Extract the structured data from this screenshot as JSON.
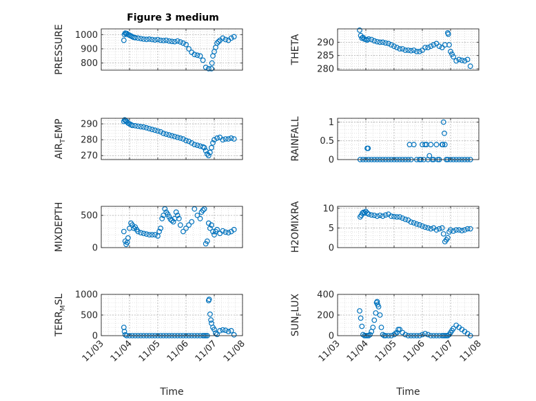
{
  "figure": {
    "title": "Figure 3 medium"
  },
  "colors": {
    "marker": "#0072BD",
    "axis": "#262626",
    "grid": "#c8c8c8"
  },
  "chart_data": [
    {
      "id": "pressure",
      "type": "scatter",
      "ylabel": "PRESSURE",
      "xlim": [
        0,
        5
      ],
      "ylim": [
        750,
        1040
      ],
      "yticks": [
        800,
        900,
        1000
      ],
      "ytick_labels": [
        "800",
        "900",
        "1000"
      ],
      "xticks": [
        0,
        1,
        2,
        3,
        4,
        5
      ],
      "xtick_labels": [],
      "grid": true,
      "minor_grid": true,
      "x": [
        0.8,
        0.82,
        0.85,
        0.88,
        0.9,
        0.95,
        1.0,
        1.05,
        1.1,
        1.15,
        1.2,
        1.3,
        1.4,
        1.5,
        1.6,
        1.7,
        1.8,
        1.9,
        2.0,
        2.1,
        2.2,
        2.3,
        2.4,
        2.5,
        2.6,
        2.7,
        2.8,
        2.9,
        3.0,
        3.1,
        3.2,
        3.3,
        3.4,
        3.5,
        3.6,
        3.7,
        3.8,
        3.9,
        3.92,
        3.95,
        4.0,
        4.05,
        4.1,
        4.15,
        4.2,
        4.3,
        4.4,
        4.5,
        4.6,
        4.7
      ],
      "y": [
        960,
        1000,
        1010,
        1005,
        1008,
        1000,
        995,
        990,
        985,
        980,
        978,
        975,
        972,
        968,
        966,
        968,
        965,
        962,
        965,
        960,
        958,
        960,
        955,
        952,
        950,
        955,
        948,
        940,
        930,
        900,
        875,
        860,
        855,
        850,
        820,
        770,
        760,
        760,
        800,
        850,
        880,
        910,
        940,
        950,
        960,
        975,
        965,
        960,
        975,
        985
      ]
    },
    {
      "id": "theta",
      "type": "scatter",
      "ylabel": "THETA",
      "xlim": [
        0,
        5
      ],
      "ylim": [
        279.5,
        295
      ],
      "yticks": [
        280,
        285,
        290
      ],
      "ytick_labels": [
        "280",
        "285",
        "290"
      ],
      "xticks": [
        0,
        1,
        2,
        3,
        4,
        5
      ],
      "xtick_labels": [],
      "grid": true,
      "minor_grid": true,
      "x": [
        0.78,
        0.82,
        0.86,
        0.9,
        0.95,
        1.0,
        1.05,
        1.1,
        1.2,
        1.3,
        1.4,
        1.5,
        1.6,
        1.7,
        1.8,
        1.9,
        2.0,
        2.1,
        2.2,
        2.3,
        2.4,
        2.5,
        2.6,
        2.7,
        2.8,
        2.9,
        3.0,
        3.1,
        3.2,
        3.3,
        3.4,
        3.5,
        3.6,
        3.7,
        3.8,
        3.9,
        3.92,
        3.95,
        4.0,
        4.05,
        4.1,
        4.2,
        4.3,
        4.4,
        4.5,
        4.6,
        4.7
      ],
      "y": [
        294.5,
        292.5,
        291.5,
        291.8,
        291.2,
        291.0,
        290.8,
        291.2,
        291.0,
        290.5,
        290.2,
        290.0,
        290.0,
        289.7,
        289.5,
        289.0,
        288.5,
        288.0,
        287.5,
        287.5,
        287.0,
        287.0,
        286.8,
        287.0,
        286.5,
        286.5,
        287.0,
        288.0,
        288.0,
        288.5,
        289.0,
        289.5,
        288.5,
        288.0,
        289.0,
        293.5,
        293.0,
        289.0,
        286.5,
        285.5,
        284.5,
        283.0,
        283.5,
        283.2,
        283.0,
        283.5,
        281.0
      ]
    },
    {
      "id": "air_temp",
      "type": "scatter",
      "ylabel": "AIR_TEMP",
      "xlim": [
        0,
        5
      ],
      "ylim": [
        267.5,
        293.5
      ],
      "yticks": [
        270,
        280,
        290
      ],
      "ytick_labels": [
        "270",
        "280",
        "290"
      ],
      "xticks": [
        0,
        1,
        2,
        3,
        4,
        5
      ],
      "xtick_labels": [],
      "grid": true,
      "minor_grid": true,
      "x": [
        0.8,
        0.83,
        0.86,
        0.9,
        0.95,
        1.0,
        1.05,
        1.1,
        1.2,
        1.3,
        1.4,
        1.5,
        1.6,
        1.7,
        1.8,
        1.9,
        2.0,
        2.1,
        2.2,
        2.3,
        2.4,
        2.5,
        2.6,
        2.7,
        2.8,
        2.9,
        3.0,
        3.1,
        3.2,
        3.3,
        3.4,
        3.5,
        3.6,
        3.65,
        3.7,
        3.75,
        3.8,
        3.85,
        3.9,
        3.95,
        4.0,
        4.1,
        4.2,
        4.3,
        4.4,
        4.5,
        4.6,
        4.7
      ],
      "y": [
        291.5,
        292.5,
        292.0,
        291.5,
        290.5,
        290.0,
        289.5,
        289.0,
        288.8,
        288.5,
        288.2,
        288.0,
        287.5,
        287.0,
        286.5,
        286.0,
        285.5,
        285.0,
        284.0,
        283.5,
        283.0,
        282.5,
        282.0,
        281.5,
        281.0,
        280.5,
        279.5,
        279.0,
        278.0,
        277.0,
        276.5,
        276.0,
        275.5,
        275.0,
        273.0,
        271.0,
        270.0,
        272.0,
        275.0,
        278.0,
        280.0,
        281.0,
        281.5,
        280.0,
        280.5,
        280.5,
        281.0,
        280.5
      ]
    },
    {
      "id": "rainfall",
      "type": "scatter",
      "ylabel": "RAINFALL",
      "xlim": [
        0,
        5
      ],
      "ylim": [
        0,
        1.1
      ],
      "yticks": [
        0,
        0.5,
        1
      ],
      "ytick_labels": [
        "0",
        "0.5",
        "1"
      ],
      "xticks": [
        0,
        1,
        2,
        3,
        4,
        5
      ],
      "xtick_labels": [],
      "grid": true,
      "minor_grid": true,
      "x": [
        0.8,
        0.9,
        1.0,
        1.05,
        1.08,
        1.1,
        1.2,
        1.3,
        1.4,
        1.5,
        1.6,
        1.7,
        1.8,
        1.9,
        2.0,
        2.1,
        2.2,
        2.3,
        2.4,
        2.5,
        2.55,
        2.6,
        2.7,
        2.8,
        2.9,
        2.95,
        3.0,
        3.05,
        3.1,
        3.15,
        3.2,
        3.25,
        3.3,
        3.35,
        3.4,
        3.5,
        3.55,
        3.6,
        3.7,
        3.72,
        3.75,
        3.78,
        3.8,
        3.85,
        3.9,
        4.0,
        4.1,
        4.2,
        4.3,
        4.4,
        4.5,
        4.6,
        4.7
      ],
      "y": [
        0,
        0,
        0,
        0.3,
        0.3,
        0,
        0,
        0,
        0,
        0,
        0,
        0,
        0,
        0,
        0,
        0,
        0,
        0,
        0,
        0,
        0.4,
        0,
        0.4,
        0,
        0,
        0,
        0.4,
        0,
        0.4,
        0.4,
        0,
        0.1,
        0.4,
        0,
        0,
        0.4,
        0,
        0,
        0.4,
        0.4,
        1.0,
        0.7,
        0.4,
        0,
        0,
        0,
        0,
        0,
        0,
        0,
        0,
        0,
        0
      ]
    },
    {
      "id": "mixdepth",
      "type": "scatter",
      "ylabel": "MIXDEPTH",
      "xlim": [
        0,
        5
      ],
      "ylim": [
        0,
        640
      ],
      "yticks": [
        0,
        500
      ],
      "ytick_labels": [
        "0",
        "500"
      ],
      "xticks": [
        0,
        1,
        2,
        3,
        4,
        5
      ],
      "xtick_labels": [],
      "grid": true,
      "minor_grid": true,
      "x": [
        0.8,
        0.85,
        0.88,
        0.92,
        0.95,
        1.0,
        1.05,
        1.1,
        1.15,
        1.2,
        1.25,
        1.3,
        1.4,
        1.5,
        1.6,
        1.7,
        1.8,
        1.9,
        2.0,
        2.05,
        2.1,
        2.15,
        2.2,
        2.25,
        2.3,
        2.35,
        2.4,
        2.45,
        2.5,
        2.55,
        2.6,
        2.65,
        2.7,
        2.75,
        2.8,
        2.9,
        3.0,
        3.1,
        3.2,
        3.3,
        3.4,
        3.5,
        3.55,
        3.6,
        3.65,
        3.7,
        3.75,
        3.8,
        3.85,
        3.9,
        3.95,
        4.0,
        4.05,
        4.1,
        4.2,
        4.3,
        4.4,
        4.5,
        4.6,
        4.7
      ],
      "y": [
        250,
        100,
        50,
        80,
        150,
        300,
        380,
        350,
        300,
        320,
        280,
        250,
        230,
        220,
        210,
        200,
        200,
        200,
        180,
        250,
        300,
        450,
        500,
        600,
        550,
        520,
        480,
        440,
        420,
        400,
        450,
        550,
        500,
        450,
        350,
        250,
        300,
        350,
        400,
        600,
        500,
        450,
        550,
        580,
        600,
        60,
        100,
        380,
        300,
        350,
        250,
        200,
        250,
        280,
        220,
        260,
        240,
        230,
        250,
        280
      ]
    },
    {
      "id": "h2omixra",
      "type": "scatter",
      "ylabel": "H2OMIXRA",
      "xlim": [
        0,
        5
      ],
      "ylim": [
        0,
        10.5
      ],
      "yticks": [
        0,
        5,
        10
      ],
      "ytick_labels": [
        "0",
        "5",
        "10"
      ],
      "xticks": [
        0,
        1,
        2,
        3,
        4,
        5
      ],
      "xtick_labels": [],
      "grid": true,
      "minor_grid": true,
      "x": [
        0.8,
        0.84,
        0.88,
        0.92,
        0.96,
        1.0,
        1.05,
        1.1,
        1.2,
        1.3,
        1.4,
        1.5,
        1.6,
        1.7,
        1.8,
        1.9,
        2.0,
        2.1,
        2.2,
        2.3,
        2.4,
        2.5,
        2.6,
        2.7,
        2.8,
        2.9,
        3.0,
        3.1,
        3.2,
        3.3,
        3.4,
        3.5,
        3.6,
        3.7,
        3.75,
        3.8,
        3.85,
        3.9,
        3.95,
        4.0,
        4.1,
        4.2,
        4.3,
        4.4,
        4.5,
        4.6,
        4.7
      ],
      "y": [
        7.8,
        8.2,
        8.8,
        9.0,
        8.8,
        9.2,
        8.8,
        8.5,
        8.3,
        8.2,
        8.0,
        8.2,
        8.0,
        8.3,
        8.5,
        8.0,
        7.9,
        7.8,
        7.8,
        7.5,
        7.2,
        7.0,
        6.5,
        6.3,
        6.0,
        5.8,
        5.5,
        5.2,
        5.0,
        4.8,
        5.0,
        4.5,
        4.8,
        5.0,
        3.5,
        1.5,
        2.0,
        2.5,
        4.0,
        4.5,
        4.2,
        4.5,
        4.5,
        4.3,
        4.5,
        4.8,
        4.8
      ]
    },
    {
      "id": "terr_msl",
      "type": "scatter",
      "ylabel": "TERR_MSL",
      "xlim": [
        0,
        5
      ],
      "ylim": [
        0,
        1000
      ],
      "yticks": [
        0,
        500,
        1000
      ],
      "ytick_labels": [
        "0",
        "500",
        "1000"
      ],
      "xticks": [
        0,
        1,
        2,
        3,
        4,
        5
      ],
      "xtick_labels": [
        "11/03",
        "11/04",
        "11/05",
        "11/06",
        "11/07",
        "11/08"
      ],
      "xlabel": "Time",
      "grid": true,
      "minor_grid": true,
      "x": [
        0.8,
        0.82,
        0.85,
        0.9,
        1.0,
        1.1,
        1.2,
        1.3,
        1.4,
        1.5,
        1.6,
        1.7,
        1.8,
        1.9,
        2.0,
        2.1,
        2.2,
        2.3,
        2.4,
        2.5,
        2.6,
        2.7,
        2.8,
        2.9,
        3.0,
        3.1,
        3.2,
        3.3,
        3.4,
        3.5,
        3.6,
        3.65,
        3.7,
        3.75,
        3.8,
        3.82,
        3.85,
        3.88,
        3.9,
        3.95,
        4.0,
        4.05,
        4.1,
        4.2,
        4.3,
        4.4,
        4.5,
        4.6,
        4.7
      ],
      "y": [
        200,
        100,
        20,
        0,
        0,
        0,
        0,
        0,
        0,
        0,
        0,
        0,
        0,
        0,
        0,
        0,
        0,
        0,
        0,
        0,
        0,
        0,
        0,
        0,
        0,
        0,
        0,
        0,
        0,
        0,
        0,
        0,
        0,
        0,
        850,
        880,
        520,
        380,
        300,
        200,
        150,
        60,
        30,
        120,
        140,
        130,
        100,
        120,
        20
      ]
    },
    {
      "id": "sun_flux",
      "type": "scatter",
      "ylabel": "SUN_FLUX",
      "xlim": [
        0,
        5
      ],
      "ylim": [
        0,
        400
      ],
      "yticks": [
        0,
        200,
        400
      ],
      "ytick_labels": [
        "0",
        "200",
        "400"
      ],
      "xticks": [
        0,
        1,
        2,
        3,
        4,
        5
      ],
      "xtick_labels": [
        "11/03",
        "11/04",
        "11/05",
        "11/06",
        "11/07",
        "11/08"
      ],
      "xlabel": "Time",
      "grid": true,
      "minor_grid": true,
      "x": [
        0.78,
        0.82,
        0.86,
        0.9,
        0.95,
        1.0,
        1.05,
        1.1,
        1.15,
        1.2,
        1.25,
        1.3,
        1.35,
        1.38,
        1.4,
        1.42,
        1.45,
        1.5,
        1.55,
        1.6,
        1.65,
        1.7,
        1.8,
        1.9,
        2.0,
        2.05,
        2.1,
        2.15,
        2.2,
        2.3,
        2.4,
        2.5,
        2.6,
        2.7,
        2.8,
        2.9,
        3.0,
        3.1,
        3.2,
        3.3,
        3.4,
        3.5,
        3.6,
        3.7,
        3.75,
        3.8,
        3.85,
        3.9,
        3.95,
        4.0,
        4.05,
        4.1,
        4.2,
        4.3,
        4.4,
        4.5,
        4.6,
        4.7
      ],
      "y": [
        240,
        170,
        90,
        10,
        0,
        0,
        0,
        0,
        10,
        40,
        80,
        150,
        220,
        320,
        330,
        300,
        280,
        200,
        80,
        10,
        0,
        0,
        0,
        0,
        10,
        20,
        30,
        60,
        60,
        30,
        10,
        0,
        0,
        0,
        0,
        0,
        10,
        20,
        10,
        0,
        0,
        0,
        0,
        0,
        0,
        0,
        0,
        0,
        10,
        30,
        50,
        70,
        100,
        80,
        60,
        40,
        20,
        0
      ]
    }
  ]
}
